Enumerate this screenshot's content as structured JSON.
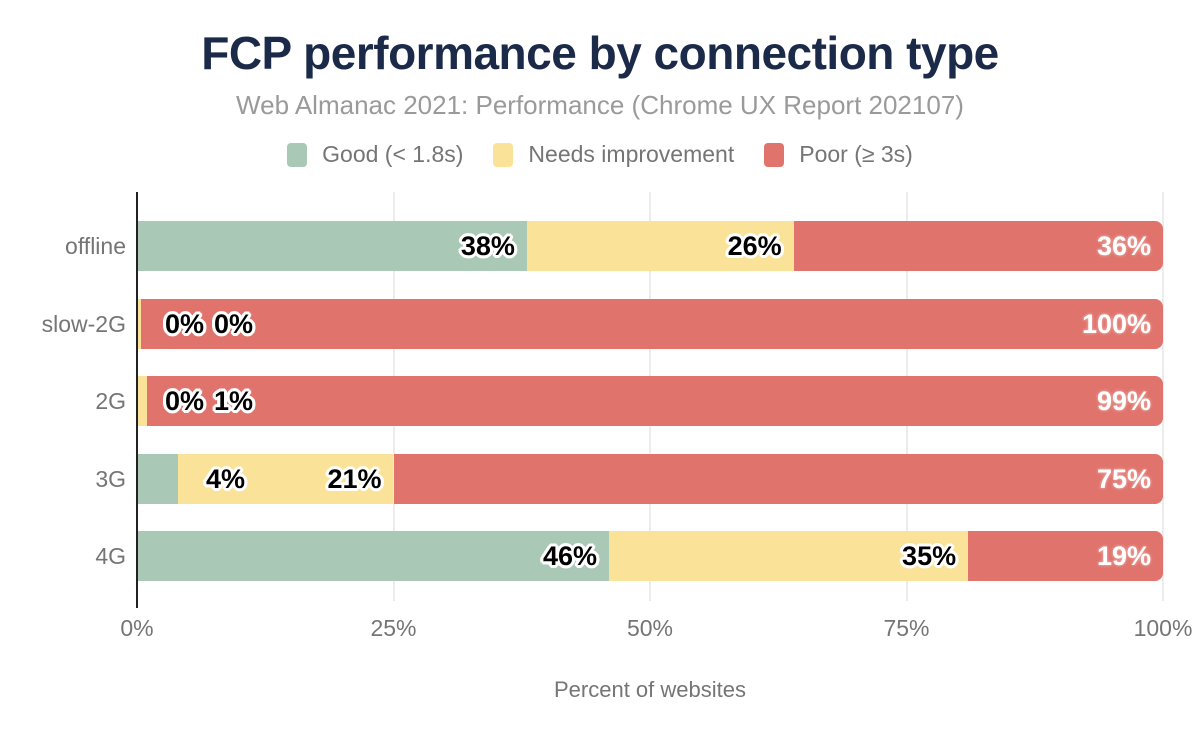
{
  "title": "FCP performance by connection type",
  "subtitle": "Web Almanac 2021: Performance (Chrome UX Report 202107)",
  "legend": {
    "items": [
      {
        "label": "Good (< 1.8s)",
        "color": "#a9c8b6"
      },
      {
        "label": "Needs improvement",
        "color": "#fae398"
      },
      {
        "label": "Poor (≥ 3s)",
        "color": "#e0736c"
      }
    ]
  },
  "colors": {
    "good": "#a9c8b6",
    "needs_improvement": "#fae398",
    "poor": "#e0736c",
    "title_text": "#1c2a4a",
    "subtitle_text": "#9a9a9a",
    "axis_text": "#757575",
    "gridline": "#ececec",
    "axis_line": "#222222",
    "label_dark": "#000000",
    "label_light": "#ffffff"
  },
  "chart_data": {
    "type": "bar",
    "orientation": "horizontal",
    "stacked": true,
    "title": "FCP performance by connection type",
    "subtitle": "Web Almanac 2021: Performance (Chrome UX Report 202107)",
    "xlabel": "Percent of websites",
    "ylabel": "",
    "xlim": [
      0,
      100
    ],
    "grid": "vertical",
    "legend_position": "top",
    "x_tick_values": [
      0,
      25,
      50,
      75,
      100
    ],
    "x_tick_labels": [
      "0%",
      "25%",
      "50%",
      "75%",
      "100%"
    ],
    "categories": [
      "offline",
      "slow-2G",
      "2G",
      "3G",
      "4G"
    ],
    "series": [
      {
        "name": "Good (< 1.8s)",
        "color": "#a9c8b6",
        "values": [
          38,
          0,
          0,
          4,
          46
        ]
      },
      {
        "name": "Needs improvement",
        "color": "#fae398",
        "values": [
          26,
          0,
          1,
          21,
          35
        ]
      },
      {
        "name": "Poor (≥ 3s)",
        "color": "#e0736c",
        "values": [
          36,
          100,
          99,
          75,
          19
        ]
      }
    ],
    "bar_labels": [
      [
        "38%",
        "26%",
        "36%"
      ],
      [
        "0%",
        "0%",
        "100%"
      ],
      [
        "0%",
        "1%",
        "99%"
      ],
      [
        "4%",
        "21%",
        "75%"
      ],
      [
        "46%",
        "35%",
        "19%"
      ]
    ],
    "render_widths_pct": [
      [
        38,
        26,
        36
      ],
      [
        0,
        0.4,
        99.6
      ],
      [
        0,
        1,
        99
      ],
      [
        4,
        21,
        75
      ],
      [
        46,
        35,
        19
      ]
    ]
  }
}
